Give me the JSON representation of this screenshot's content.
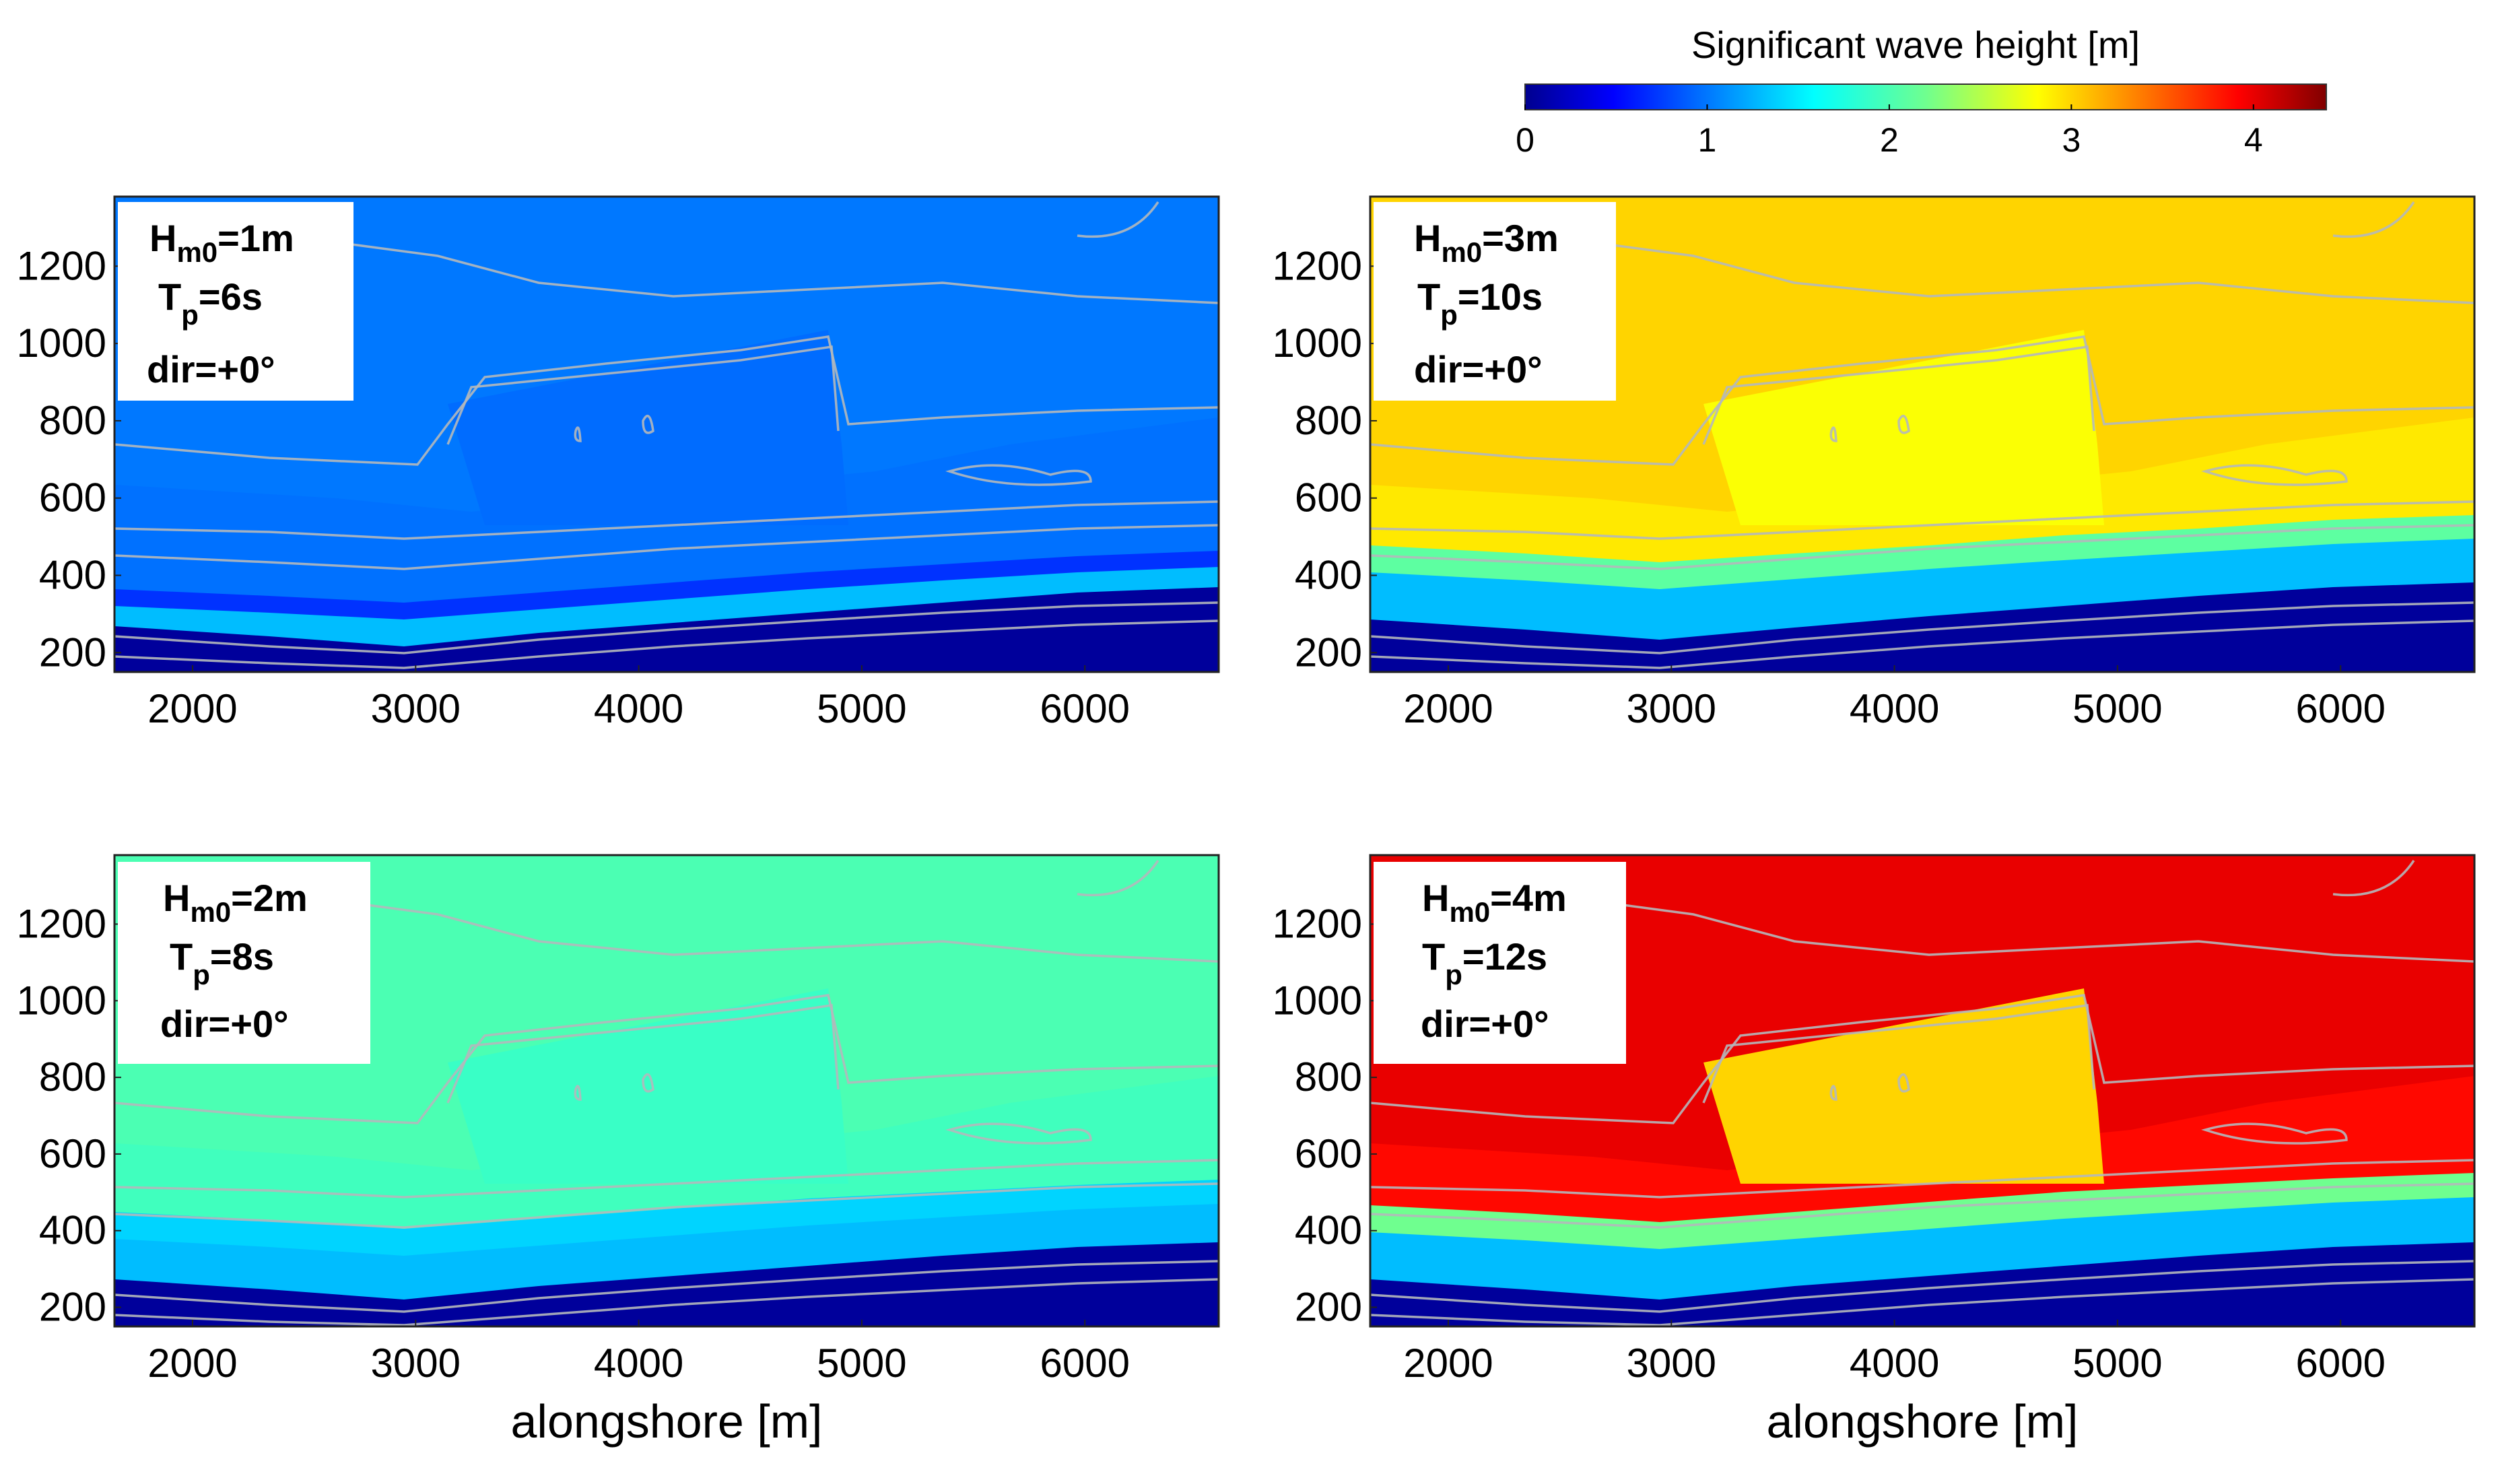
{
  "chart_data": {
    "type": "heatmap",
    "colorbar": {
      "title": "Significant wave height [m]",
      "range": [
        0,
        4.4
      ],
      "ticks": [
        "0",
        "1",
        "2",
        "3",
        "4"
      ],
      "colormap": "jet"
    },
    "xlabel": "alongshore [m]",
    "xlim": [
      1650,
      6600
    ],
    "ylim": [
      150,
      1380
    ],
    "xticks": [
      "2000",
      "3000",
      "4000",
      "5000",
      "6000"
    ],
    "yticks": [
      "200",
      "400",
      "600",
      "800",
      "1000",
      "1200"
    ],
    "panels": [
      {
        "id": "a",
        "hm0": "=1m",
        "tp": "=6s",
        "dir": "dir=+0°",
        "offshore_hs": 1.0,
        "nearshore_hs": 0.95,
        "show_xlabel": false
      },
      {
        "id": "b",
        "hm0": "=3m",
        "tp": "=10s",
        "dir": "dir=+0°",
        "offshore_hs": 3.0,
        "nearshore_hs": 2.8,
        "show_xlabel": false
      },
      {
        "id": "c",
        "hm0": "=2m",
        "tp": "=8s",
        "dir": "dir=+0°",
        "offshore_hs": 2.0,
        "nearshore_hs": 1.9,
        "show_xlabel": true
      },
      {
        "id": "d",
        "hm0": "=4m",
        "tp": "=12s",
        "dir": "dir=+0°",
        "offshore_hs": 4.0,
        "nearshore_hs": 3.0,
        "show_xlabel": true
      }
    ],
    "param_symbols": {
      "h": "H",
      "h_sub": "m0",
      "t": "T",
      "t_sub": "p"
    }
  }
}
